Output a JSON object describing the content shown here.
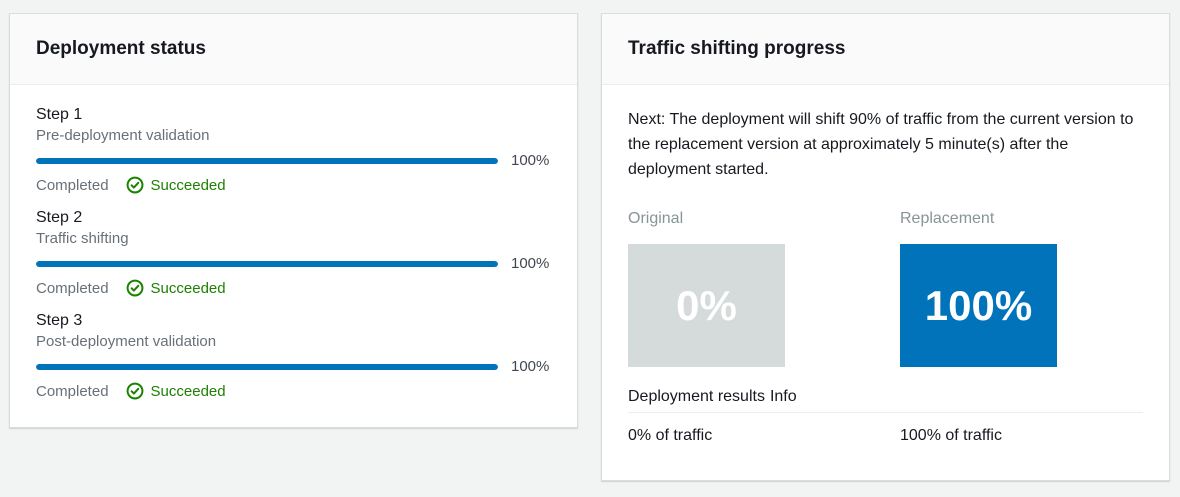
{
  "colors": {
    "page_background": "#f2f3f3",
    "card_background": "#ffffff",
    "card_header_background": "#fafafa",
    "divider": "#eaeded",
    "accent_blue": "#0073bb",
    "success_green": "#1d8102",
    "primary_text": "#16191f",
    "secondary_text": "#687078",
    "muted_label": "#879596",
    "original_box_gray": "#d5dbdb"
  },
  "deployment_status": {
    "title": "Deployment status",
    "steps": [
      {
        "name": "Step 1",
        "description": "Pre-deployment validation",
        "progress_label": "100%",
        "progress_value": 100,
        "state": "Completed",
        "status": "Succeeded"
      },
      {
        "name": "Step 2",
        "description": "Traffic shifting",
        "progress_label": "100%",
        "progress_value": 100,
        "state": "Completed",
        "status": "Succeeded"
      },
      {
        "name": "Step 3",
        "description": "Post-deployment validation",
        "progress_label": "100%",
        "progress_value": 100,
        "state": "Completed",
        "status": "Succeeded"
      }
    ]
  },
  "traffic_shifting": {
    "title": "Traffic shifting progress",
    "next_message": "Next: The deployment will shift 90% of traffic from the current version to the replacement version at approximately 5 minute(s) after the deployment started.",
    "original": {
      "label": "Original",
      "percent": "0%",
      "traffic": "0% of traffic"
    },
    "replacement": {
      "label": "Replacement",
      "percent": "100%",
      "traffic": "100% of traffic"
    },
    "results_heading": "Deployment results",
    "info_link": "Info"
  }
}
